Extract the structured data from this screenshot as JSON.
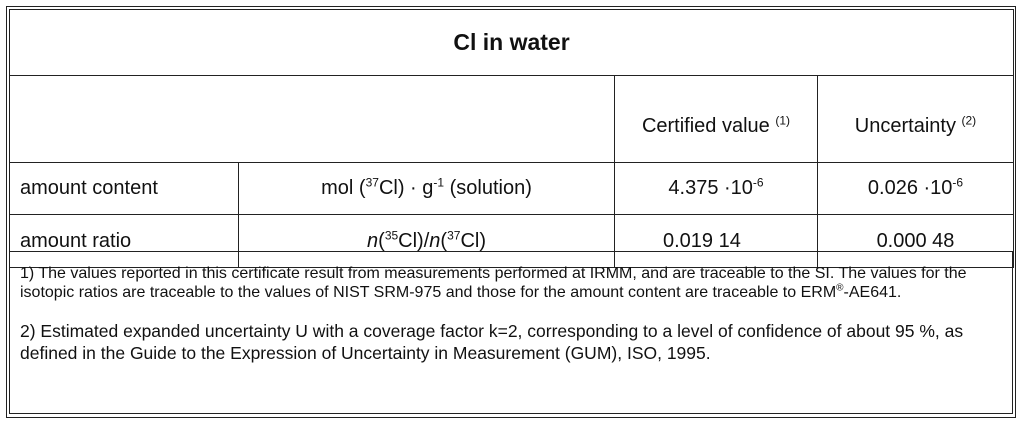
{
  "title": "Cl in water",
  "header": {
    "certified_value": "Certified value",
    "certified_value_note": "(1)",
    "uncertainty": "Uncertainty",
    "uncertainty_note": "(2)"
  },
  "rows": [
    {
      "label": "amount content",
      "unit_prefix": "mol (",
      "unit_sup1": "37",
      "unit_mid": "Cl) · g",
      "unit_sup2": "-1",
      "unit_suffix": " (solution)",
      "value_base": "4.375 ·10",
      "value_exp": "-6",
      "uncertainty_base": "0.026 ·10",
      "uncertainty_exp": "-6"
    },
    {
      "label": "amount ratio",
      "unit_n1": "n",
      "unit_p1": "(",
      "unit_sup1": "35",
      "unit_m1": "Cl)/",
      "unit_n2": "n",
      "unit_p2": "(",
      "unit_sup2": "37",
      "unit_m2": "Cl)",
      "value": "0.019 14",
      "uncertainty": "0.000 48"
    }
  ],
  "notes": {
    "note1_a": "1) The values reported in this certificate result from measurements performed at IRMM, and are traceable to the SI. The values for the isotopic ratios are traceable to the values of NIST SRM-975 and those for the amount content are traceable to ERM",
    "note1_reg": "®",
    "note1_b": "-AE641.",
    "note2": "2) Estimated expanded uncertainty U with a coverage factor k=2, corresponding to a level of confidence of about 95 %, as defined in the Guide to the Expression of Uncertainty in Measurement (GUM), ISO, 1995."
  }
}
